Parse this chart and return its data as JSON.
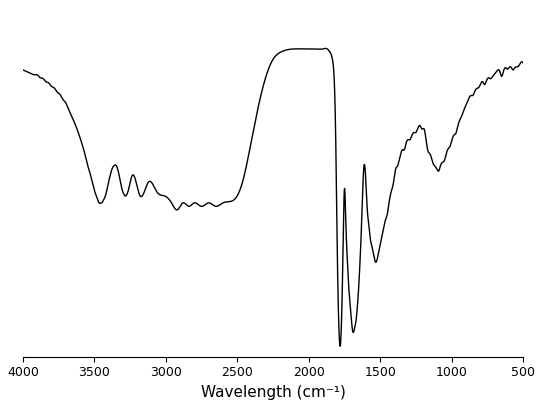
{
  "xlabel": "Wavelength (cm⁻¹)",
  "xlim": [
    4000,
    500
  ],
  "xticks": [
    4000,
    3500,
    3000,
    2500,
    2000,
    1500,
    1000,
    500
  ],
  "background_color": "#ffffff",
  "line_color": "#000000",
  "line_width": 1.0,
  "keypoints": [
    [
      4000,
      0.82
    ],
    [
      3900,
      0.8
    ],
    [
      3800,
      0.77
    ],
    [
      3700,
      0.72
    ],
    [
      3650,
      0.68
    ],
    [
      3580,
      0.6
    ],
    [
      3500,
      0.48
    ],
    [
      3450,
      0.44
    ],
    [
      3400,
      0.5
    ],
    [
      3350,
      0.55
    ],
    [
      3280,
      0.46
    ],
    [
      3230,
      0.52
    ],
    [
      3180,
      0.46
    ],
    [
      3120,
      0.5
    ],
    [
      3060,
      0.47
    ],
    [
      3010,
      0.46
    ],
    [
      2960,
      0.44
    ],
    [
      2920,
      0.42
    ],
    [
      2880,
      0.44
    ],
    [
      2840,
      0.43
    ],
    [
      2800,
      0.44
    ],
    [
      2750,
      0.43
    ],
    [
      2700,
      0.44
    ],
    [
      2650,
      0.43
    ],
    [
      2600,
      0.44
    ],
    [
      2500,
      0.46
    ],
    [
      2450,
      0.52
    ],
    [
      2400,
      0.62
    ],
    [
      2350,
      0.72
    ],
    [
      2300,
      0.8
    ],
    [
      2250,
      0.85
    ],
    [
      2200,
      0.87
    ],
    [
      2100,
      0.88
    ],
    [
      2000,
      0.88
    ],
    [
      1950,
      0.88
    ],
    [
      1900,
      0.88
    ],
    [
      1870,
      0.88
    ],
    [
      1850,
      0.87
    ],
    [
      1830,
      0.84
    ],
    [
      1820,
      0.78
    ],
    [
      1810,
      0.6
    ],
    [
      1800,
      0.3
    ],
    [
      1790,
      0.1
    ],
    [
      1780,
      0.03
    ],
    [
      1760,
      0.3
    ],
    [
      1750,
      0.48
    ],
    [
      1740,
      0.38
    ],
    [
      1730,
      0.28
    ],
    [
      1720,
      0.2
    ],
    [
      1710,
      0.15
    ],
    [
      1700,
      0.1
    ],
    [
      1690,
      0.07
    ],
    [
      1680,
      0.08
    ],
    [
      1670,
      0.1
    ],
    [
      1660,
      0.14
    ],
    [
      1650,
      0.2
    ],
    [
      1640,
      0.28
    ],
    [
      1630,
      0.38
    ],
    [
      1620,
      0.5
    ],
    [
      1610,
      0.55
    ],
    [
      1600,
      0.5
    ],
    [
      1590,
      0.42
    ],
    [
      1580,
      0.38
    ],
    [
      1570,
      0.34
    ],
    [
      1560,
      0.32
    ],
    [
      1550,
      0.3
    ],
    [
      1540,
      0.28
    ],
    [
      1530,
      0.27
    ],
    [
      1520,
      0.28
    ],
    [
      1510,
      0.3
    ],
    [
      1500,
      0.32
    ],
    [
      1490,
      0.34
    ],
    [
      1480,
      0.36
    ],
    [
      1470,
      0.38
    ],
    [
      1460,
      0.4
    ],
    [
      1450,
      0.42
    ],
    [
      1440,
      0.44
    ],
    [
      1430,
      0.46
    ],
    [
      1420,
      0.48
    ],
    [
      1410,
      0.5
    ],
    [
      1400,
      0.52
    ],
    [
      1390,
      0.54
    ],
    [
      1380,
      0.55
    ],
    [
      1370,
      0.57
    ],
    [
      1360,
      0.58
    ],
    [
      1350,
      0.59
    ],
    [
      1340,
      0.6
    ],
    [
      1330,
      0.61
    ],
    [
      1310,
      0.62
    ],
    [
      1290,
      0.63
    ],
    [
      1270,
      0.64
    ],
    [
      1250,
      0.65
    ],
    [
      1230,
      0.66
    ],
    [
      1210,
      0.67
    ],
    [
      1200,
      0.66
    ],
    [
      1190,
      0.65
    ],
    [
      1180,
      0.63
    ],
    [
      1170,
      0.61
    ],
    [
      1160,
      0.59
    ],
    [
      1150,
      0.58
    ],
    [
      1140,
      0.57
    ],
    [
      1130,
      0.56
    ],
    [
      1120,
      0.55
    ],
    [
      1100,
      0.54
    ],
    [
      1080,
      0.55
    ],
    [
      1060,
      0.56
    ],
    [
      1040,
      0.58
    ],
    [
      1020,
      0.6
    ],
    [
      1000,
      0.62
    ],
    [
      980,
      0.64
    ],
    [
      960,
      0.66
    ],
    [
      940,
      0.68
    ],
    [
      920,
      0.7
    ],
    [
      900,
      0.72
    ],
    [
      880,
      0.74
    ],
    [
      860,
      0.75
    ],
    [
      840,
      0.76
    ],
    [
      820,
      0.77
    ],
    [
      800,
      0.78
    ],
    [
      780,
      0.79
    ],
    [
      760,
      0.79
    ],
    [
      740,
      0.8
    ],
    [
      720,
      0.8
    ],
    [
      700,
      0.81
    ],
    [
      680,
      0.82
    ],
    [
      660,
      0.82
    ],
    [
      640,
      0.82
    ],
    [
      620,
      0.83
    ],
    [
      600,
      0.83
    ],
    [
      580,
      0.83
    ],
    [
      560,
      0.83
    ],
    [
      540,
      0.83
    ],
    [
      520,
      0.84
    ],
    [
      500,
      0.84
    ]
  ]
}
